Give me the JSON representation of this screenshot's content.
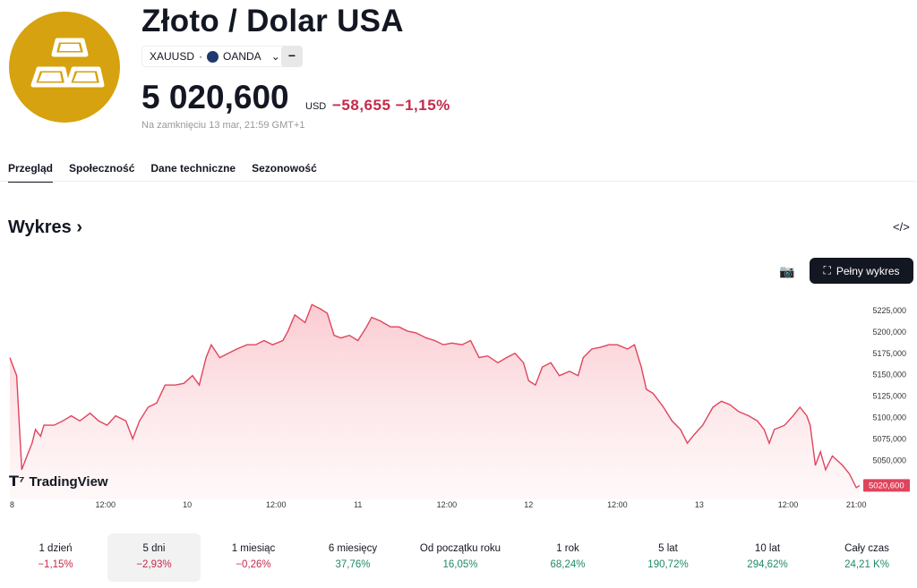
{
  "header": {
    "title": "Złoto / Dolar USA",
    "symbol": "XAUUSD",
    "separator": "·",
    "exchange": "OANDA",
    "price": "5 020,600",
    "currency": "USD",
    "change": "−58,655 −1,15%",
    "closed_note": "Na zamknięciu 13 mar, 21:59 GMT+1"
  },
  "tabs": [
    "Przegląd",
    "Społeczność",
    "Dane techniczne",
    "Sezonowość"
  ],
  "section": {
    "title": "Wykres ›",
    "full_chart": "Pełny wykres",
    "embed_icon": "</>",
    "brand": "TradingView"
  },
  "colors": {
    "line": "#e0445c",
    "fill": "#fbd4d8",
    "logo": "#d6a20f",
    "negative": "#c6294a",
    "positive": "#1f8a62"
  },
  "chart_data": {
    "type": "area",
    "title": "XAUUSD 5 dni",
    "x": [
      0,
      4,
      7,
      10,
      13,
      15,
      18,
      20,
      26,
      31,
      36,
      41,
      47,
      52,
      57,
      62,
      68,
      72,
      76,
      81,
      86,
      91,
      97,
      102,
      107,
      111,
      115,
      118,
      123,
      128,
      133,
      139,
      144,
      149,
      154,
      160,
      163,
      167,
      173,
      177,
      182,
      186,
      190,
      194,
      199,
      204,
      209,
      212,
      217,
      223,
      228,
      233,
      238,
      244,
      249,
      254,
      259,
      265,
      270,
      275,
      280,
      286,
      291,
      296,
      301,
      304,
      308,
      312,
      317,
      322,
      328,
      333,
      336,
      341,
      346,
      351,
      356,
      362,
      366,
      370,
      373,
      377,
      383,
      388,
      393,
      397,
      401,
      406,
      412,
      417,
      422,
      427,
      433,
      438,
      442,
      445,
      448,
      454,
      459,
      463,
      467,
      469,
      472,
      475,
      478,
      482,
      488,
      492,
      496,
      498
    ],
    "values": [
      5170,
      5149,
      5039,
      5055,
      5070,
      5086,
      5078,
      5091,
      5091,
      5096,
      5102,
      5096,
      5105,
      5096,
      5091,
      5102,
      5096,
      5075,
      5096,
      5112,
      5117,
      5138,
      5138,
      5140,
      5149,
      5138,
      5170,
      5185,
      5170,
      5175,
      5180,
      5185,
      5185,
      5190,
      5185,
      5190,
      5201,
      5220,
      5211,
      5232,
      5227,
      5222,
      5196,
      5193,
      5196,
      5190,
      5206,
      5217,
      5213,
      5206,
      5206,
      5201,
      5199,
      5193,
      5190,
      5185,
      5187,
      5185,
      5190,
      5170,
      5172,
      5164,
      5170,
      5175,
      5164,
      5143,
      5138,
      5159,
      5164,
      5149,
      5154,
      5149,
      5170,
      5180,
      5182,
      5185,
      5185,
      5180,
      5185,
      5159,
      5133,
      5128,
      5112,
      5096,
      5086,
      5070,
      5080,
      5091,
      5112,
      5119,
      5115,
      5107,
      5102,
      5096,
      5086,
      5070,
      5086,
      5091,
      5102,
      5112,
      5102,
      5091,
      5044,
      5060,
      5039,
      5055,
      5044,
      5034,
      5018,
      5020.6
    ],
    "ylim": [
      5017,
      5240
    ],
    "y_ticks": [
      "5225,000",
      "5200,000",
      "5175,000",
      "5150,000",
      "5125,000",
      "5100,000",
      "5075,000",
      "5050,000"
    ],
    "y_tick_values": [
      5225,
      5200,
      5175,
      5150,
      5125,
      5100,
      5075,
      5050
    ],
    "x_ticks": [
      {
        "label": "8",
        "at": 0
      },
      {
        "label": "12:00",
        "at": 56
      },
      {
        "label": "10",
        "at": 104
      },
      {
        "label": "12:00",
        "at": 156
      },
      {
        "label": "11",
        "at": 204
      },
      {
        "label": "12:00",
        "at": 256
      },
      {
        "label": "12",
        "at": 304
      },
      {
        "label": "12:00",
        "at": 356
      },
      {
        "label": "13",
        "at": 404
      },
      {
        "label": "12:00",
        "at": 456
      },
      {
        "label": "21:00",
        "at": 496
      }
    ],
    "last_label": "5020,600",
    "xlim": [
      0,
      498
    ]
  },
  "periods": [
    {
      "label": "1 dzień",
      "value": "−1,15%",
      "dir": "neg"
    },
    {
      "label": "5 dni",
      "value": "−2,93%",
      "dir": "neg",
      "selected": true
    },
    {
      "label": "1 miesiąc",
      "value": "−0,26%",
      "dir": "neg"
    },
    {
      "label": "6 miesięcy",
      "value": "37,76%",
      "dir": "pos"
    },
    {
      "label": "Od początku roku",
      "value": "16,05%",
      "dir": "pos"
    },
    {
      "label": "1 rok",
      "value": "68,24%",
      "dir": "pos"
    },
    {
      "label": "5 lat",
      "value": "190,72%",
      "dir": "pos"
    },
    {
      "label": "10 lat",
      "value": "294,62%",
      "dir": "pos"
    },
    {
      "label": "Cały czas",
      "value": "24,21 K%",
      "dir": "pos"
    }
  ]
}
